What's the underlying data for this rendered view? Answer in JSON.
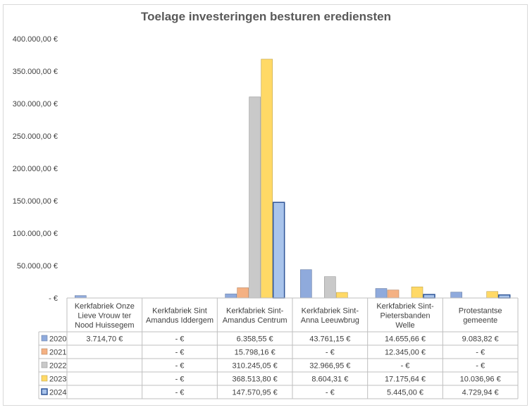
{
  "chart_data": {
    "type": "bar",
    "title": "Toelage investeringen besturen erediensten",
    "ylim": [
      0,
      400000
    ],
    "yticks": [
      {
        "value": 0,
        "label": "-  €"
      },
      {
        "value": 50000,
        "label": "50.000,00 €"
      },
      {
        "value": 100000,
        "label": "100.000,00 €"
      },
      {
        "value": 150000,
        "label": "150.000,00 €"
      },
      {
        "value": 200000,
        "label": "200.000,00 €"
      },
      {
        "value": 250000,
        "label": "250.000,00 €"
      },
      {
        "value": 300000,
        "label": "300.000,00 €"
      },
      {
        "value": 350000,
        "label": "350.000,00 €"
      },
      {
        "value": 400000,
        "label": "400.000,00 €"
      }
    ],
    "categories": [
      [
        "Kerkfabriek Onze",
        "Lieve Vrouw ter",
        "Nood Huissegem"
      ],
      [
        "Kerkfabriek Sint",
        "Amandus Iddergem"
      ],
      [
        "Kerkfabriek Sint-",
        "Amandus Centrum"
      ],
      [
        "Kerkfabriek Sint-",
        "Anna Leeuwbrug"
      ],
      [
        "Kerkfabriek Sint-",
        "Pietersbanden",
        "Welle"
      ],
      [
        "Protestantse",
        "gemeente"
      ]
    ],
    "series": [
      {
        "name": "2020",
        "color": "#8faadc",
        "values": [
          3714.7,
          0,
          6358.55,
          43761.15,
          14655.66,
          9083.82
        ],
        "labels": [
          "3.714,70 €",
          "-   €",
          "6.358,55 €",
          "43.761,15 €",
          "14.655,66 €",
          "9.083,82 €"
        ]
      },
      {
        "name": "2021",
        "color": "#f4b183",
        "values": [
          null,
          0,
          15798.16,
          0,
          12345.0,
          0
        ],
        "labels": [
          "",
          "-   €",
          "15.798,16 €",
          "-   €",
          "12.345,00 €",
          "-   €"
        ]
      },
      {
        "name": "2022",
        "color": "#c9c9c9",
        "values": [
          null,
          0,
          310245.05,
          32966.95,
          0,
          0
        ],
        "labels": [
          "",
          "-   €",
          "310.245,05 €",
          "32.966,95 €",
          "-   €",
          "-   €"
        ]
      },
      {
        "name": "2023",
        "color": "#ffd966",
        "values": [
          null,
          0,
          368513.8,
          8604.31,
          17175.64,
          10036.96
        ],
        "labels": [
          "",
          "-   €",
          "368.513,80 €",
          "8.604,31 €",
          "17.175,64 €",
          "10.036,96 €"
        ]
      },
      {
        "name": "2024",
        "color": "#a9c4eb",
        "values": [
          null,
          0,
          147570.95,
          0,
          5445.0,
          4729.94
        ],
        "labels": [
          "",
          "-   €",
          "147.570,95 €",
          "-   €",
          "5.445,00 €",
          "4.729,94 €"
        ]
      }
    ]
  }
}
